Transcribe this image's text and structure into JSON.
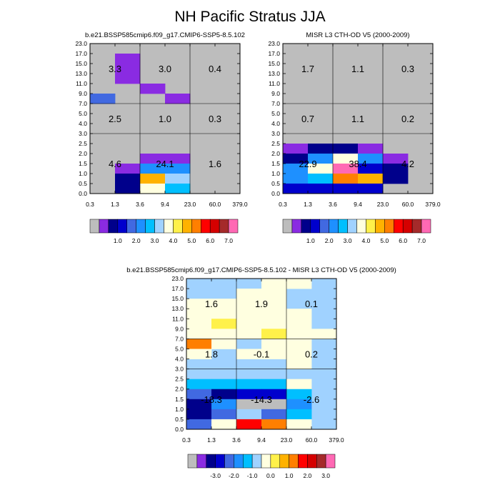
{
  "figure": {
    "title": "NH Pacific Stratus JJA"
  },
  "chart_data": [
    {
      "type": "heatmap",
      "title": "b.e21.BSSP585cmip6.f09_g17.CMIP6-SSP5-8.5.102",
      "x_tick_labels": [
        "0.3",
        "1.3",
        "3.6",
        "9.4",
        "23.0",
        "60.0",
        "379.0"
      ],
      "y_tick_labels": [
        "0.0",
        "0.5",
        "1.0",
        "1.5",
        "2.0",
        "2.5",
        "3.0",
        "4.0",
        "5.0",
        "7.0",
        "9.0",
        "11.0",
        "13.0",
        "15.0",
        "17.0",
        "23.0"
      ],
      "colorbar_labels": [
        "1.0",
        "2.0",
        "3.0",
        "4.0",
        "5.0",
        "6.0",
        "7.0"
      ],
      "colorbar_colors": [
        "#bdbdbd",
        "#8a2be2",
        "#00008b",
        "#0000cd",
        "#4169e1",
        "#1e90ff",
        "#00bfff",
        "#a0d2ff",
        "#ffffe0",
        "#fff14a",
        "#ffb200",
        "#ff7f00",
        "#ff0000",
        "#d50000",
        "#a52a2a",
        "#ff69b4"
      ],
      "background_color": "#bdbdbd",
      "cells": [
        {
          "x": 0,
          "y": 9,
          "c": 4
        },
        {
          "x": 1,
          "y": 13,
          "c": 1
        },
        {
          "x": 1,
          "y": 12,
          "c": 1
        },
        {
          "x": 1,
          "y": 11,
          "c": 1
        },
        {
          "x": 2,
          "y": 10,
          "c": 1
        },
        {
          "x": 3,
          "y": 9,
          "c": 1
        },
        {
          "x": 2,
          "y": 3,
          "c": 1
        },
        {
          "x": 3,
          "y": 3,
          "c": 1
        },
        {
          "x": 1,
          "y": 2,
          "c": 1
        },
        {
          "x": 2,
          "y": 2,
          "c": 5
        },
        {
          "x": 3,
          "y": 2,
          "c": 5
        },
        {
          "x": 1,
          "y": 1,
          "c": 2
        },
        {
          "x": 2,
          "y": 1,
          "c": 10
        },
        {
          "x": 3,
          "y": 1,
          "c": 7
        },
        {
          "x": 1,
          "y": 0,
          "c": 2
        },
        {
          "x": 2,
          "y": 0,
          "c": 8
        },
        {
          "x": 3,
          "y": 0,
          "c": 6
        }
      ],
      "region_values": [
        "3.3",
        "3.0",
        "0.4",
        "2.5",
        "1.0",
        "0.3",
        "4.6",
        "24.1",
        "1.6"
      ]
    },
    {
      "type": "heatmap",
      "title": "MISR L3 CTH-OD V5 (2000-2009)",
      "x_tick_labels": [
        "0.3",
        "1.3",
        "3.6",
        "9.4",
        "23.0",
        "60.0",
        "379.0"
      ],
      "y_tick_labels": [
        "0.0",
        "0.5",
        "1.0",
        "1.5",
        "2.0",
        "2.5",
        "3.0",
        "4.0",
        "5.0",
        "7.0",
        "9.0",
        "11.0",
        "13.0",
        "15.0",
        "17.0",
        "23.0"
      ],
      "colorbar_labels": [
        "1.0",
        "2.0",
        "3.0",
        "4.0",
        "5.0",
        "6.0",
        "7.0"
      ],
      "colorbar_colors": [
        "#bdbdbd",
        "#8a2be2",
        "#00008b",
        "#0000cd",
        "#4169e1",
        "#1e90ff",
        "#00bfff",
        "#a0d2ff",
        "#ffffe0",
        "#fff14a",
        "#ffb200",
        "#ff7f00",
        "#ff0000",
        "#d50000",
        "#a52a2a",
        "#ff69b4"
      ],
      "background_color": "#bdbdbd",
      "cells": [
        {
          "x": 0,
          "y": 4,
          "c": 1
        },
        {
          "x": 1,
          "y": 4,
          "c": 2
        },
        {
          "x": 2,
          "y": 4,
          "c": 2
        },
        {
          "x": 3,
          "y": 4,
          "c": 1
        },
        {
          "x": 0,
          "y": 3,
          "c": 2
        },
        {
          "x": 1,
          "y": 3,
          "c": 5
        },
        {
          "x": 2,
          "y": 3,
          "c": 8
        },
        {
          "x": 3,
          "y": 3,
          "c": 5
        },
        {
          "x": 4,
          "y": 3,
          "c": 1
        },
        {
          "x": 0,
          "y": 2,
          "c": 5
        },
        {
          "x": 1,
          "y": 2,
          "c": 8
        },
        {
          "x": 2,
          "y": 2,
          "c": 15
        },
        {
          "x": 3,
          "y": 2,
          "c": 3
        },
        {
          "x": 4,
          "y": 2,
          "c": 2
        },
        {
          "x": 0,
          "y": 1,
          "c": 5
        },
        {
          "x": 1,
          "y": 1,
          "c": 6
        },
        {
          "x": 2,
          "y": 1,
          "c": 11
        },
        {
          "x": 3,
          "y": 1,
          "c": 10
        },
        {
          "x": 4,
          "y": 1,
          "c": 2
        },
        {
          "x": 0,
          "y": 0,
          "c": 3
        },
        {
          "x": 1,
          "y": 0,
          "c": 3
        },
        {
          "x": 2,
          "y": 0,
          "c": 3
        },
        {
          "x": 3,
          "y": 0,
          "c": 3
        }
      ],
      "region_values": [
        "1.7",
        "1.1",
        "0.3",
        "0.7",
        "1.1",
        "0.2",
        "22.9",
        "38.4",
        "4.2"
      ]
    },
    {
      "type": "heatmap",
      "title": "b.e21.BSSP585cmip6.f09_g17.CMIP6-SSP5-8.5.102 - MISR L3 CTH-OD V5 (2000-2009)",
      "x_tick_labels": [
        "0.3",
        "1.3",
        "3.6",
        "9.4",
        "23.0",
        "60.0",
        "379.0"
      ],
      "y_tick_labels": [
        "0.0",
        "0.5",
        "1.0",
        "1.5",
        "2.0",
        "2.5",
        "3.0",
        "4.0",
        "5.0",
        "7.0",
        "9.0",
        "11.0",
        "13.0",
        "15.0",
        "17.0",
        "23.0"
      ],
      "colorbar_labels": [
        "-3.0",
        "-2.0",
        "-1.0",
        "0.0",
        "1.0",
        "2.0",
        "3.0"
      ],
      "colorbar_colors": [
        "#bdbdbd",
        "#8a2be2",
        "#00008b",
        "#0000cd",
        "#4169e1",
        "#1e90ff",
        "#00bfff",
        "#a0d2ff",
        "#ffffe0",
        "#fff14a",
        "#ffb200",
        "#ff7f00",
        "#ff0000",
        "#d50000",
        "#a52a2a",
        "#ff69b4"
      ],
      "background_color": "#a0d2ff",
      "cells": [
        {
          "x": 3,
          "y": 14,
          "c": 8
        },
        {
          "x": 4,
          "y": 14,
          "c": 8
        },
        {
          "x": 2,
          "y": 13,
          "c": 8
        },
        {
          "x": 3,
          "y": 13,
          "c": 8
        },
        {
          "x": 0,
          "y": 12,
          "c": 8
        },
        {
          "x": 1,
          "y": 12,
          "c": 8
        },
        {
          "x": 2,
          "y": 12,
          "c": 8
        },
        {
          "x": 3,
          "y": 12,
          "c": 8
        },
        {
          "x": 0,
          "y": 11,
          "c": 8
        },
        {
          "x": 1,
          "y": 11,
          "c": 8
        },
        {
          "x": 2,
          "y": 11,
          "c": 8
        },
        {
          "x": 3,
          "y": 11,
          "c": 8
        },
        {
          "x": 4,
          "y": 11,
          "c": 8
        },
        {
          "x": 0,
          "y": 10,
          "c": 8
        },
        {
          "x": 1,
          "y": 10,
          "c": 9
        },
        {
          "x": 2,
          "y": 10,
          "c": 8
        },
        {
          "x": 3,
          "y": 10,
          "c": 8
        },
        {
          "x": 4,
          "y": 10,
          "c": 8
        },
        {
          "x": 0,
          "y": 9,
          "c": 8
        },
        {
          "x": 1,
          "y": 9,
          "c": 8
        },
        {
          "x": 2,
          "y": 9,
          "c": 8
        },
        {
          "x": 3,
          "y": 9,
          "c": 9
        },
        {
          "x": 4,
          "y": 9,
          "c": 8
        },
        {
          "x": 5,
          "y": 9,
          "c": 8
        },
        {
          "x": 0,
          "y": 8,
          "c": 11
        },
        {
          "x": 1,
          "y": 8,
          "c": 8
        },
        {
          "x": 3,
          "y": 8,
          "c": 8
        },
        {
          "x": 4,
          "y": 8,
          "c": 8
        },
        {
          "x": 0,
          "y": 7,
          "c": 8
        },
        {
          "x": 2,
          "y": 7,
          "c": 8
        },
        {
          "x": 3,
          "y": 7,
          "c": 8
        },
        {
          "x": 4,
          "y": 7,
          "c": 8
        },
        {
          "x": 4,
          "y": 6,
          "c": 8
        },
        {
          "x": 0,
          "y": 4,
          "c": 6
        },
        {
          "x": 1,
          "y": 4,
          "c": 6
        },
        {
          "x": 2,
          "y": 4,
          "c": 6
        },
        {
          "x": 3,
          "y": 4,
          "c": 6
        },
        {
          "x": 4,
          "y": 4,
          "c": 8
        },
        {
          "x": 0,
          "y": 3,
          "c": 4
        },
        {
          "x": 1,
          "y": 3,
          "c": 2
        },
        {
          "x": 2,
          "y": 3,
          "c": 3
        },
        {
          "x": 3,
          "y": 3,
          "c": 3
        },
        {
          "x": 4,
          "y": 3,
          "c": 6
        },
        {
          "x": 0,
          "y": 2,
          "c": 2
        },
        {
          "x": 1,
          "y": 2,
          "c": 5
        },
        {
          "x": 2,
          "y": 2,
          "c": 0
        },
        {
          "x": 3,
          "y": 2,
          "c": 0
        },
        {
          "x": 4,
          "y": 2,
          "c": 5
        },
        {
          "x": 0,
          "y": 1,
          "c": 2
        },
        {
          "x": 1,
          "y": 1,
          "c": 4
        },
        {
          "x": 2,
          "y": 1,
          "c": 7
        },
        {
          "x": 3,
          "y": 1,
          "c": 4
        },
        {
          "x": 4,
          "y": 1,
          "c": 6
        },
        {
          "x": 0,
          "y": 0,
          "c": 4
        },
        {
          "x": 1,
          "y": 0,
          "c": 8
        },
        {
          "x": 2,
          "y": 0,
          "c": 12
        },
        {
          "x": 3,
          "y": 0,
          "c": 11
        },
        {
          "x": 4,
          "y": 0,
          "c": 8
        }
      ],
      "region_values": [
        "1.6",
        "1.9",
        "0.1",
        "1.8",
        "-0.1",
        "0.2",
        "-18.3",
        "-14.3",
        "-2.6"
      ]
    }
  ]
}
